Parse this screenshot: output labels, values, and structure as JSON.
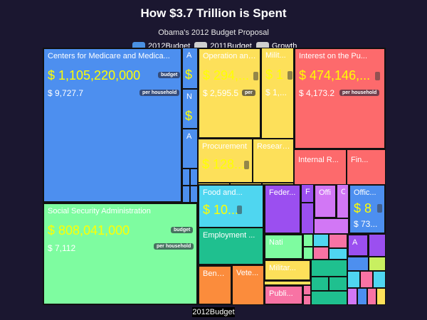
{
  "title": "How $3.7 Trillion is Spent",
  "subtitle": "Obama's 2012 Budget Proposal",
  "legend": [
    {
      "label": "2012Budget",
      "color": "#4a90e2"
    },
    {
      "label": "2011Budget",
      "color": "#cfcfcf"
    },
    {
      "label": "Growth",
      "color": "#cfcfcf"
    }
  ],
  "chips": {
    "budget": "budget",
    "per_household": "per household"
  },
  "footer": "2012Budget",
  "colors": {
    "blue": "#4d8fef",
    "green": "#7efca0",
    "yellow": "#fde05a",
    "red": "#fd6a6c",
    "cyan": "#4fd6f0",
    "purple": "#9b4ff0",
    "violet": "#d277f5",
    "teal": "#1fc08f",
    "orange": "#fb8c3c",
    "pink": "#f873a4",
    "lime": "#c8f060",
    "brown": "#c99856"
  },
  "cells": {
    "medicare": {
      "name": "Centers for Medicare and Medica...",
      "value": "$ 1,105,220,000",
      "per_household": "$ 9,727.7"
    },
    "ssa": {
      "name": "Social Security Administration",
      "value": "$ 808,041,000",
      "per_household": "$ 7,112"
    },
    "a1": {
      "name": "A",
      "value": "$"
    },
    "n1": {
      "name": "N",
      "value": "$"
    },
    "a2": {
      "name": "A"
    },
    "operation": {
      "name": "Operation and...",
      "value": "$ 294,...",
      "per_household": "$ 2,595.5"
    },
    "military": {
      "name": "Milit...",
      "value": "$ 1",
      "per_household": "$ 1,..."
    },
    "procurement": {
      "name": "Procurement",
      "value": "$ 128..."
    },
    "research": {
      "name": "Researc..."
    },
    "interest": {
      "name": "Interest on the Pu...",
      "value": "$ 474,146,...",
      "per_household": "$ 4,173.2"
    },
    "internal": {
      "name": "Internal R..."
    },
    "fin": {
      "name": "Fin..."
    },
    "food": {
      "name": "Food and...",
      "value": "$ 10..."
    },
    "federal": {
      "name": "Feder..."
    },
    "f1": {
      "name": "F"
    },
    "offi": {
      "name": "Offi"
    },
    "o1": {
      "name": "O"
    },
    "office": {
      "name": "Offic...",
      "value": "$ 8",
      "per_household": "$ 73..."
    },
    "employment": {
      "name": "Employment ..."
    },
    "nati": {
      "name": "Nati"
    },
    "a3": {
      "name": "A"
    },
    "militar": {
      "name": "Militar..."
    },
    "benefi": {
      "name": "Benefi..."
    },
    "vete": {
      "name": "Vete..."
    },
    "publi": {
      "name": "Publi..."
    }
  }
}
